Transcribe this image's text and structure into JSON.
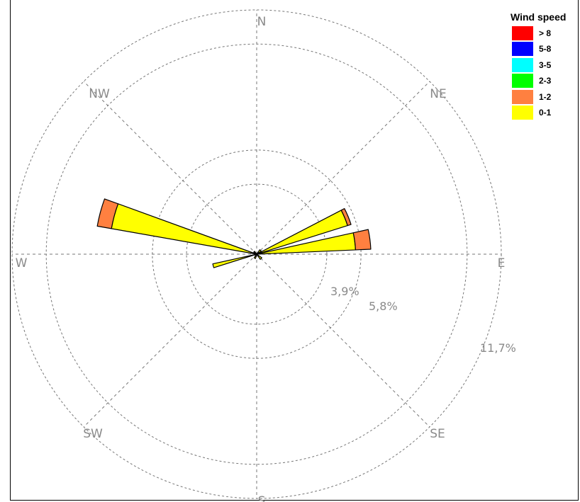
{
  "chart_data": {
    "type": "wind-rose",
    "legend_title": "Wind speed",
    "legend_placement": "top-right",
    "speed_bins": [
      {
        "label": "> 8",
        "color": "#ff0000"
      },
      {
        "label": "5-8",
        "color": "#0000ff"
      },
      {
        "label": "3-5",
        "color": "#00ffff"
      },
      {
        "label": "2-3",
        "color": "#00ff00"
      },
      {
        "label": "1-2",
        "color": "#ff8040"
      },
      {
        "label": "0-1",
        "color": "#ffff00"
      }
    ],
    "directions": [
      "N",
      "NE",
      "E",
      "SE",
      "S",
      "SW",
      "W",
      "NW"
    ],
    "ring_labels": [
      "3,9%",
      "5,8%",
      "11,7%"
    ],
    "ring_values": [
      3.9,
      5.8,
      11.7
    ],
    "r_max": 13.6,
    "grid": true,
    "sectors": [
      {
        "center_deg": 67.5,
        "width_deg": 10,
        "values": {
          "0-1": 5.3,
          "1-2": 0.2
        }
      },
      {
        "center_deg": 82.5,
        "width_deg": 10,
        "values": {
          "0-1": 5.5,
          "1-2": 0.85
        }
      },
      {
        "center_deg": 255,
        "width_deg": 5,
        "values": {
          "0-1": 2.5
        }
      },
      {
        "center_deg": 285,
        "width_deg": 10,
        "values": {
          "0-1": 8.2,
          "1-2": 0.8
        }
      },
      {
        "center_deg": 45,
        "width_deg": 20,
        "values": {
          "0-1": 0.3
        }
      },
      {
        "center_deg": 135,
        "width_deg": 20,
        "values": {
          "0-1": 0.35
        }
      },
      {
        "center_deg": 205,
        "width_deg": 20,
        "values": {
          "0-1": 0.25
        }
      },
      {
        "center_deg": 315,
        "width_deg": 20,
        "values": {
          "0-1": 0.2
        }
      }
    ]
  }
}
